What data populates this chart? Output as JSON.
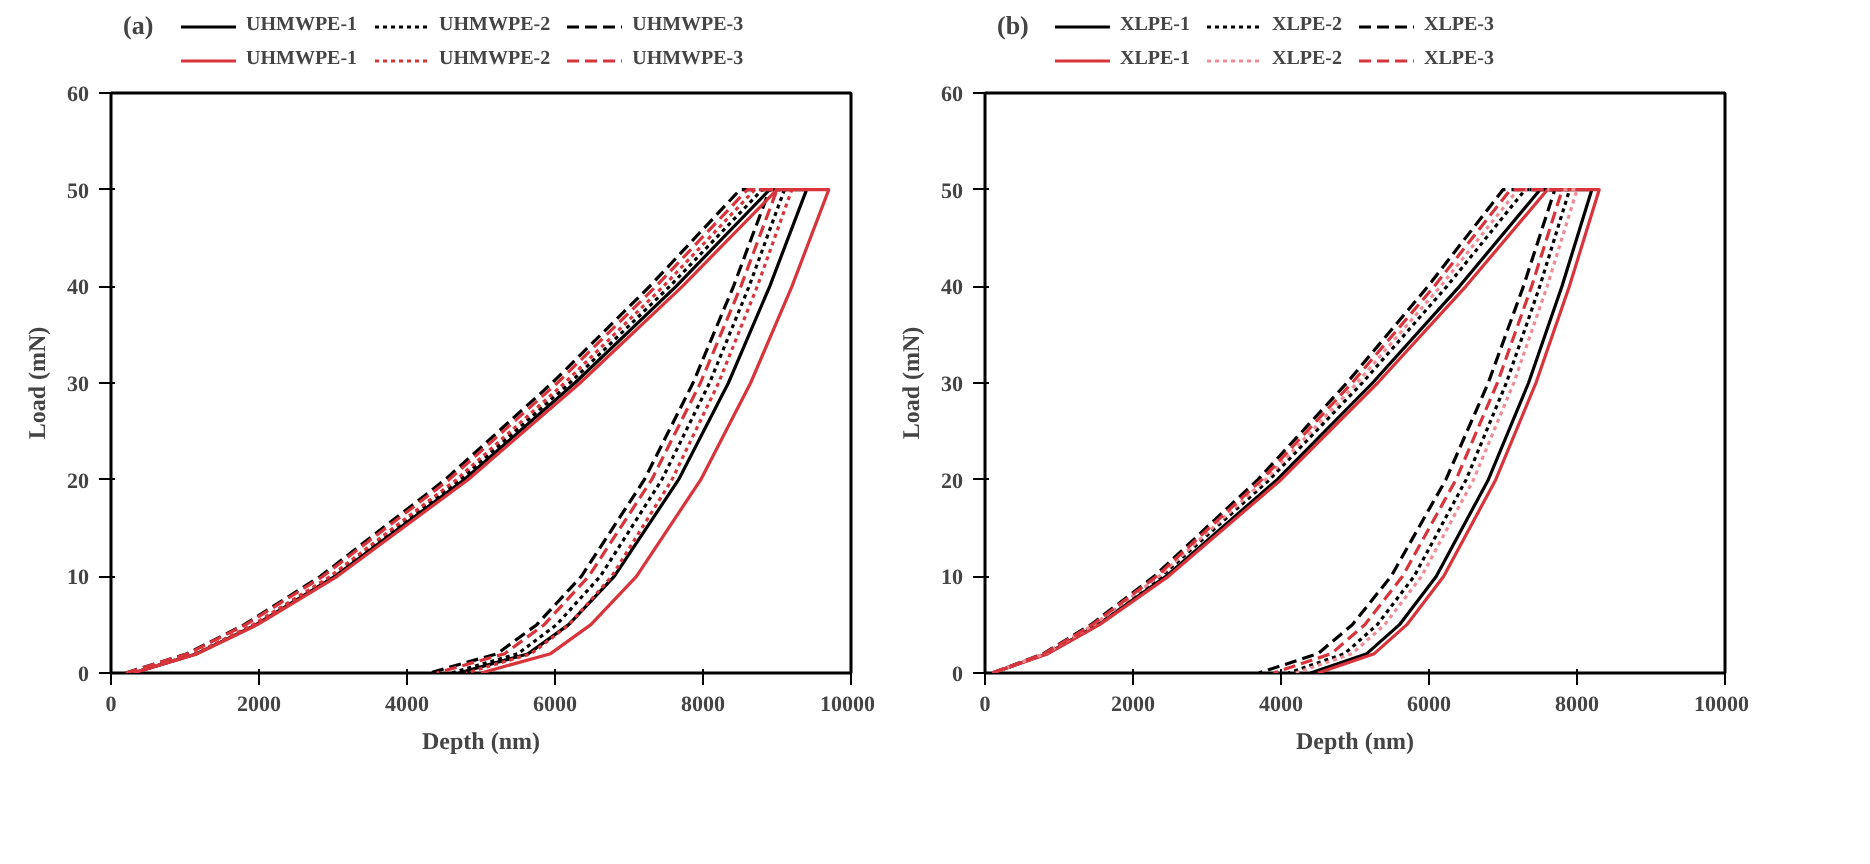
{
  "chart_data": [
    {
      "type": "line",
      "title": "(a)",
      "xlabel": "Depth (nm)",
      "ylabel": "Load (mN)",
      "xlim": [
        0,
        10000
      ],
      "ylim": [
        0,
        60
      ],
      "xticks": [
        0,
        2000,
        4000,
        6000,
        8000,
        10000
      ],
      "yticks": [
        0,
        10,
        20,
        30,
        40,
        50,
        60
      ],
      "grid": false,
      "legend": "top",
      "marker": "none",
      "series": [
        {
          "name": "UHMWPE-1",
          "color": "#000000",
          "line_style": "solid",
          "x": [
            300,
            1160,
            1960,
            3026,
            4772,
            6268,
            7636,
            8900,
            9400,
            8902,
            8343,
            7670,
            6801,
            6185,
            5640,
            4700
          ],
          "values": [
            0,
            2,
            5,
            10,
            20,
            30,
            40,
            50,
            50,
            40,
            30,
            20,
            10,
            5,
            2,
            0
          ]
        },
        {
          "name": "UHMWPE-2",
          "color": "#000000",
          "line_style": "dotted",
          "x": [
            300,
            1150,
            1941,
            2995,
            4720,
            6199,
            7551,
            8800,
            9100,
            8623,
            8088,
            7444,
            6612,
            6022,
            5500,
            4600
          ],
          "values": [
            0,
            2,
            5,
            10,
            20,
            30,
            40,
            50,
            50,
            40,
            30,
            20,
            10,
            5,
            2,
            0
          ]
        },
        {
          "name": "UHMWPE-3",
          "color": "#000000",
          "line_style": "dashed",
          "x": [
            200,
            1030,
            1802,
            2831,
            4516,
            5960,
            7280,
            8500,
            8900,
            8412,
            7865,
            7207,
            6356,
            5754,
            5220,
            4300
          ],
          "values": [
            0,
            2,
            5,
            10,
            20,
            30,
            40,
            50,
            50,
            40,
            30,
            20,
            10,
            5,
            2,
            0
          ]
        },
        {
          "name": "UHMWPE-1",
          "color": "#d8343c",
          "line_style": "solid",
          "x": [
            300,
            1170,
            1979,
            3058,
            4824,
            6338,
            7721,
            9000,
            9700,
            9202,
            8643,
            7970,
            7101,
            6485,
            5940,
            5000
          ],
          "values": [
            0,
            2,
            5,
            10,
            20,
            30,
            40,
            50,
            50,
            40,
            30,
            20,
            10,
            5,
            2,
            0
          ]
        },
        {
          "name": "UHMWPE-2",
          "color": "#d8343c",
          "line_style": "dotted",
          "x": [
            300,
            1140,
            1921,
            2963,
            4668,
            6130,
            7465,
            8700,
            9200,
            8734,
            8210,
            7581,
            6767,
            6190,
            5680,
            4800
          ],
          "values": [
            0,
            2,
            5,
            10,
            20,
            30,
            40,
            50,
            50,
            40,
            30,
            20,
            10,
            5,
            2,
            0
          ]
        },
        {
          "name": "UHMWPE-3",
          "color": "#d8343c",
          "line_style": "dashed",
          "x": [
            200,
            1040,
            1821,
            2863,
            4568,
            6030,
            7365,
            8600,
            9000,
            8512,
            7965,
            7307,
            6456,
            5854,
            5320,
            4400
          ],
          "values": [
            0,
            2,
            5,
            10,
            20,
            30,
            40,
            50,
            50,
            40,
            30,
            20,
            10,
            5,
            2,
            0
          ]
        }
      ]
    },
    {
      "type": "line",
      "title": "(b)",
      "xlabel": "Depth (nm)",
      "ylabel": "Load (mN)",
      "xlim": [
        0,
        10000
      ],
      "ylim": [
        0,
        60
      ],
      "xticks": [
        0,
        2000,
        4000,
        6000,
        8000,
        10000
      ],
      "yticks": [
        0,
        10,
        20,
        30,
        40,
        50,
        60
      ],
      "grid": false,
      "legend": "top",
      "marker": "none",
      "series": [
        {
          "name": "XLPE-1",
          "color": "#000000",
          "line_style": "solid",
          "x": [
            100,
            840,
            1528,
            2446,
            3948,
            5236,
            6412,
            7500,
            8200,
            7797,
            7345,
            6802,
            6099,
            5601,
            5160,
            4400
          ],
          "values": [
            0,
            2,
            5,
            10,
            20,
            30,
            40,
            50,
            50,
            40,
            30,
            20,
            10,
            5,
            2,
            0
          ]
        },
        {
          "name": "XLPE-2",
          "color": "#000000",
          "line_style": "dotted",
          "x": [
            100,
            820,
            1490,
            2382,
            3844,
            5097,
            6242,
            7300,
            7900,
            7497,
            7045,
            6502,
            5799,
            5301,
            4860,
            4100
          ],
          "values": [
            0,
            2,
            5,
            10,
            20,
            30,
            40,
            50,
            50,
            40,
            30,
            20,
            10,
            5,
            2,
            0
          ]
        },
        {
          "name": "XLPE-3",
          "color": "#000000",
          "line_style": "dashed",
          "x": [
            100,
            790,
            1432,
            2287,
            3688,
            4889,
            5986,
            7000,
            7700,
            7276,
            6800,
            6228,
            5488,
            4964,
            4500,
            3700
          ],
          "values": [
            0,
            2,
            5,
            10,
            20,
            30,
            40,
            50,
            50,
            40,
            30,
            20,
            10,
            5,
            2,
            0
          ]
        },
        {
          "name": "XLPE-1",
          "color": "#d8343c",
          "line_style": "solid",
          "x": [
            100,
            850,
            1548,
            2478,
            4000,
            5305,
            6498,
            7600,
            8300,
            7897,
            7445,
            6902,
            6199,
            5701,
            5260,
            4500
          ],
          "values": [
            0,
            2,
            5,
            10,
            20,
            30,
            40,
            50,
            50,
            40,
            30,
            20,
            10,
            5,
            2,
            0
          ]
        },
        {
          "name": "XLPE-2",
          "color": "#f08c96",
          "line_style": "dotted",
          "x": [
            100,
            810,
            1470,
            2351,
            3792,
            5027,
            6156,
            7200,
            8000,
            7597,
            7145,
            6602,
            5899,
            5401,
            4960,
            4200
          ],
          "values": [
            0,
            2,
            5,
            10,
            20,
            30,
            40,
            50,
            50,
            40,
            30,
            20,
            10,
            5,
            2,
            0
          ]
        },
        {
          "name": "XLPE-3",
          "color": "#d8343c",
          "line_style": "dashed",
          "x": [
            100,
            800,
            1451,
            2319,
            3740,
            4958,
            6071,
            7100,
            7800,
            7387,
            6923,
            6365,
            5643,
            5132,
            4680,
            3900
          ],
          "values": [
            0,
            2,
            5,
            10,
            20,
            30,
            40,
            50,
            50,
            40,
            30,
            20,
            10,
            5,
            2,
            0
          ]
        }
      ]
    }
  ]
}
